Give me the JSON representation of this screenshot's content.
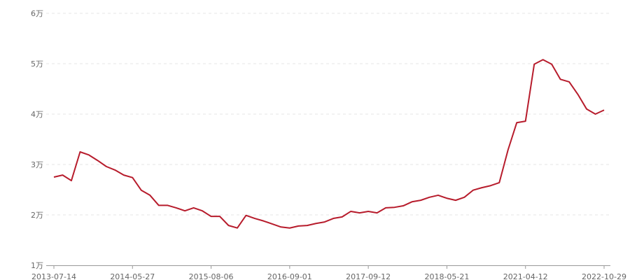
{
  "chart_data": {
    "type": "line",
    "categories": [
      "2013-07-14",
      null,
      null,
      null,
      null,
      null,
      null,
      null,
      null,
      "2014-05-27",
      null,
      null,
      null,
      null,
      null,
      null,
      null,
      null,
      "2015-08-06",
      null,
      null,
      null,
      null,
      null,
      null,
      null,
      null,
      "2016-09-01",
      null,
      null,
      null,
      null,
      null,
      null,
      null,
      null,
      "2017-09-12",
      null,
      null,
      null,
      null,
      null,
      null,
      null,
      null,
      "2018-05-21",
      null,
      null,
      null,
      null,
      null,
      null,
      null,
      null,
      "2021-04-12",
      null,
      null,
      null,
      null,
      null,
      null,
      null,
      null,
      "2022-10-29"
    ],
    "series": [
      {
        "color": "#b71c2c",
        "values": [
          2.75,
          2.79,
          2.68,
          3.25,
          3.19,
          3.08,
          2.96,
          2.89,
          2.79,
          2.74,
          2.49,
          2.39,
          2.19,
          2.19,
          2.14,
          2.08,
          2.14,
          2.08,
          1.97,
          1.97,
          1.79,
          1.74,
          1.99,
          1.93,
          1.88,
          1.82,
          1.76,
          1.74,
          1.78,
          1.79,
          1.83,
          1.86,
          1.93,
          1.96,
          2.07,
          2.04,
          2.07,
          2.04,
          2.14,
          2.15,
          2.18,
          2.26,
          2.29,
          2.35,
          2.39,
          2.33,
          2.29,
          2.35,
          2.49,
          2.54,
          2.58,
          2.64,
          3.29,
          3.83,
          3.86,
          4.99,
          5.08,
          4.99,
          4.69,
          4.64,
          4.39,
          4.1,
          4.0,
          4.08
        ]
      }
    ],
    "ylim": [
      1,
      6
    ],
    "yticks": [
      {
        "value": 1,
        "label": "1万"
      },
      {
        "value": 2,
        "label": "2万"
      },
      {
        "value": 3,
        "label": "3万"
      },
      {
        "value": 4,
        "label": "4万"
      },
      {
        "value": 5,
        "label": "5万"
      },
      {
        "value": 6,
        "label": "6万"
      }
    ],
    "grid": true
  }
}
